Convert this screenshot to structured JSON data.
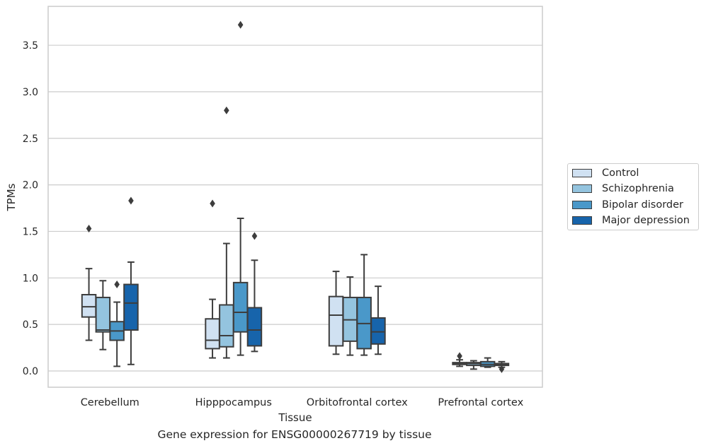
{
  "caption": "Gene expression for ENSG00000267719 by tissue",
  "chart_data": {
    "type": "boxplot",
    "xlabel": "Tissue",
    "ylabel": "TPMs",
    "ylim": [
      -0.16,
      3.9
    ],
    "yticks": [
      0.0,
      0.5,
      1.0,
      1.5,
      2.0,
      2.5,
      3.0,
      3.5
    ],
    "ytick_labels": [
      "0.0",
      "0.5",
      "1.0",
      "1.5",
      "2.0",
      "2.5",
      "3.0",
      "3.5"
    ],
    "grid": "horizontal",
    "legend_position": "right",
    "categories": [
      "Cerebellum",
      "Hipppocampus",
      "Orbitofrontal cortex",
      "Prefrontal cortex"
    ],
    "series": [
      {
        "name": "Control",
        "color": "#d0e1f2",
        "boxes": [
          {
            "q1": 0.58,
            "median": 0.69,
            "q3": 0.82,
            "whislo": 0.33,
            "whishi": 1.1,
            "fliers": [
              1.53
            ]
          },
          {
            "q1": 0.24,
            "median": 0.33,
            "q3": 0.56,
            "whislo": 0.14,
            "whishi": 0.77,
            "fliers": [
              1.8
            ]
          },
          {
            "q1": 0.27,
            "median": 0.6,
            "q3": 0.8,
            "whislo": 0.18,
            "whishi": 1.07,
            "fliers": []
          },
          {
            "q1": 0.07,
            "median": 0.08,
            "q3": 0.09,
            "whislo": 0.05,
            "whishi": 0.12,
            "fliers": [
              0.16
            ]
          }
        ]
      },
      {
        "name": "Schizophrenia",
        "color": "#94c4df",
        "boxes": [
          {
            "q1": 0.42,
            "median": 0.44,
            "q3": 0.79,
            "whislo": 0.23,
            "whishi": 0.97,
            "fliers": []
          },
          {
            "q1": 0.26,
            "median": 0.38,
            "q3": 0.71,
            "whislo": 0.14,
            "whishi": 1.37,
            "fliers": [
              2.8
            ]
          },
          {
            "q1": 0.32,
            "median": 0.55,
            "q3": 0.79,
            "whislo": 0.17,
            "whishi": 1.01,
            "fliers": []
          },
          {
            "q1": 0.06,
            "median": 0.08,
            "q3": 0.09,
            "whislo": 0.02,
            "whishi": 0.11,
            "fliers": []
          }
        ]
      },
      {
        "name": "Bipolar disorder",
        "color": "#4a98c9",
        "boxes": [
          {
            "q1": 0.33,
            "median": 0.43,
            "q3": 0.53,
            "whislo": 0.05,
            "whishi": 0.74,
            "fliers": [
              0.93
            ]
          },
          {
            "q1": 0.42,
            "median": 0.63,
            "q3": 0.95,
            "whislo": 0.17,
            "whishi": 1.64,
            "fliers": [
              3.72
            ]
          },
          {
            "q1": 0.24,
            "median": 0.51,
            "q3": 0.79,
            "whislo": 0.17,
            "whishi": 1.25,
            "fliers": []
          },
          {
            "q1": 0.05,
            "median": 0.07,
            "q3": 0.1,
            "whislo": 0.04,
            "whishi": 0.14,
            "fliers": []
          }
        ]
      },
      {
        "name": "Major depression",
        "color": "#1764ab",
        "boxes": [
          {
            "q1": 0.44,
            "median": 0.73,
            "q3": 0.93,
            "whislo": 0.07,
            "whishi": 1.17,
            "fliers": [
              1.83
            ]
          },
          {
            "q1": 0.27,
            "median": 0.44,
            "q3": 0.68,
            "whislo": 0.21,
            "whishi": 1.19,
            "fliers": [
              1.45
            ]
          },
          {
            "q1": 0.29,
            "median": 0.42,
            "q3": 0.57,
            "whislo": 0.18,
            "whishi": 0.91,
            "fliers": []
          },
          {
            "q1": 0.06,
            "median": 0.07,
            "q3": 0.08,
            "whislo": 0.04,
            "whishi": 0.1,
            "fliers": [
              0.02
            ]
          }
        ]
      }
    ]
  }
}
